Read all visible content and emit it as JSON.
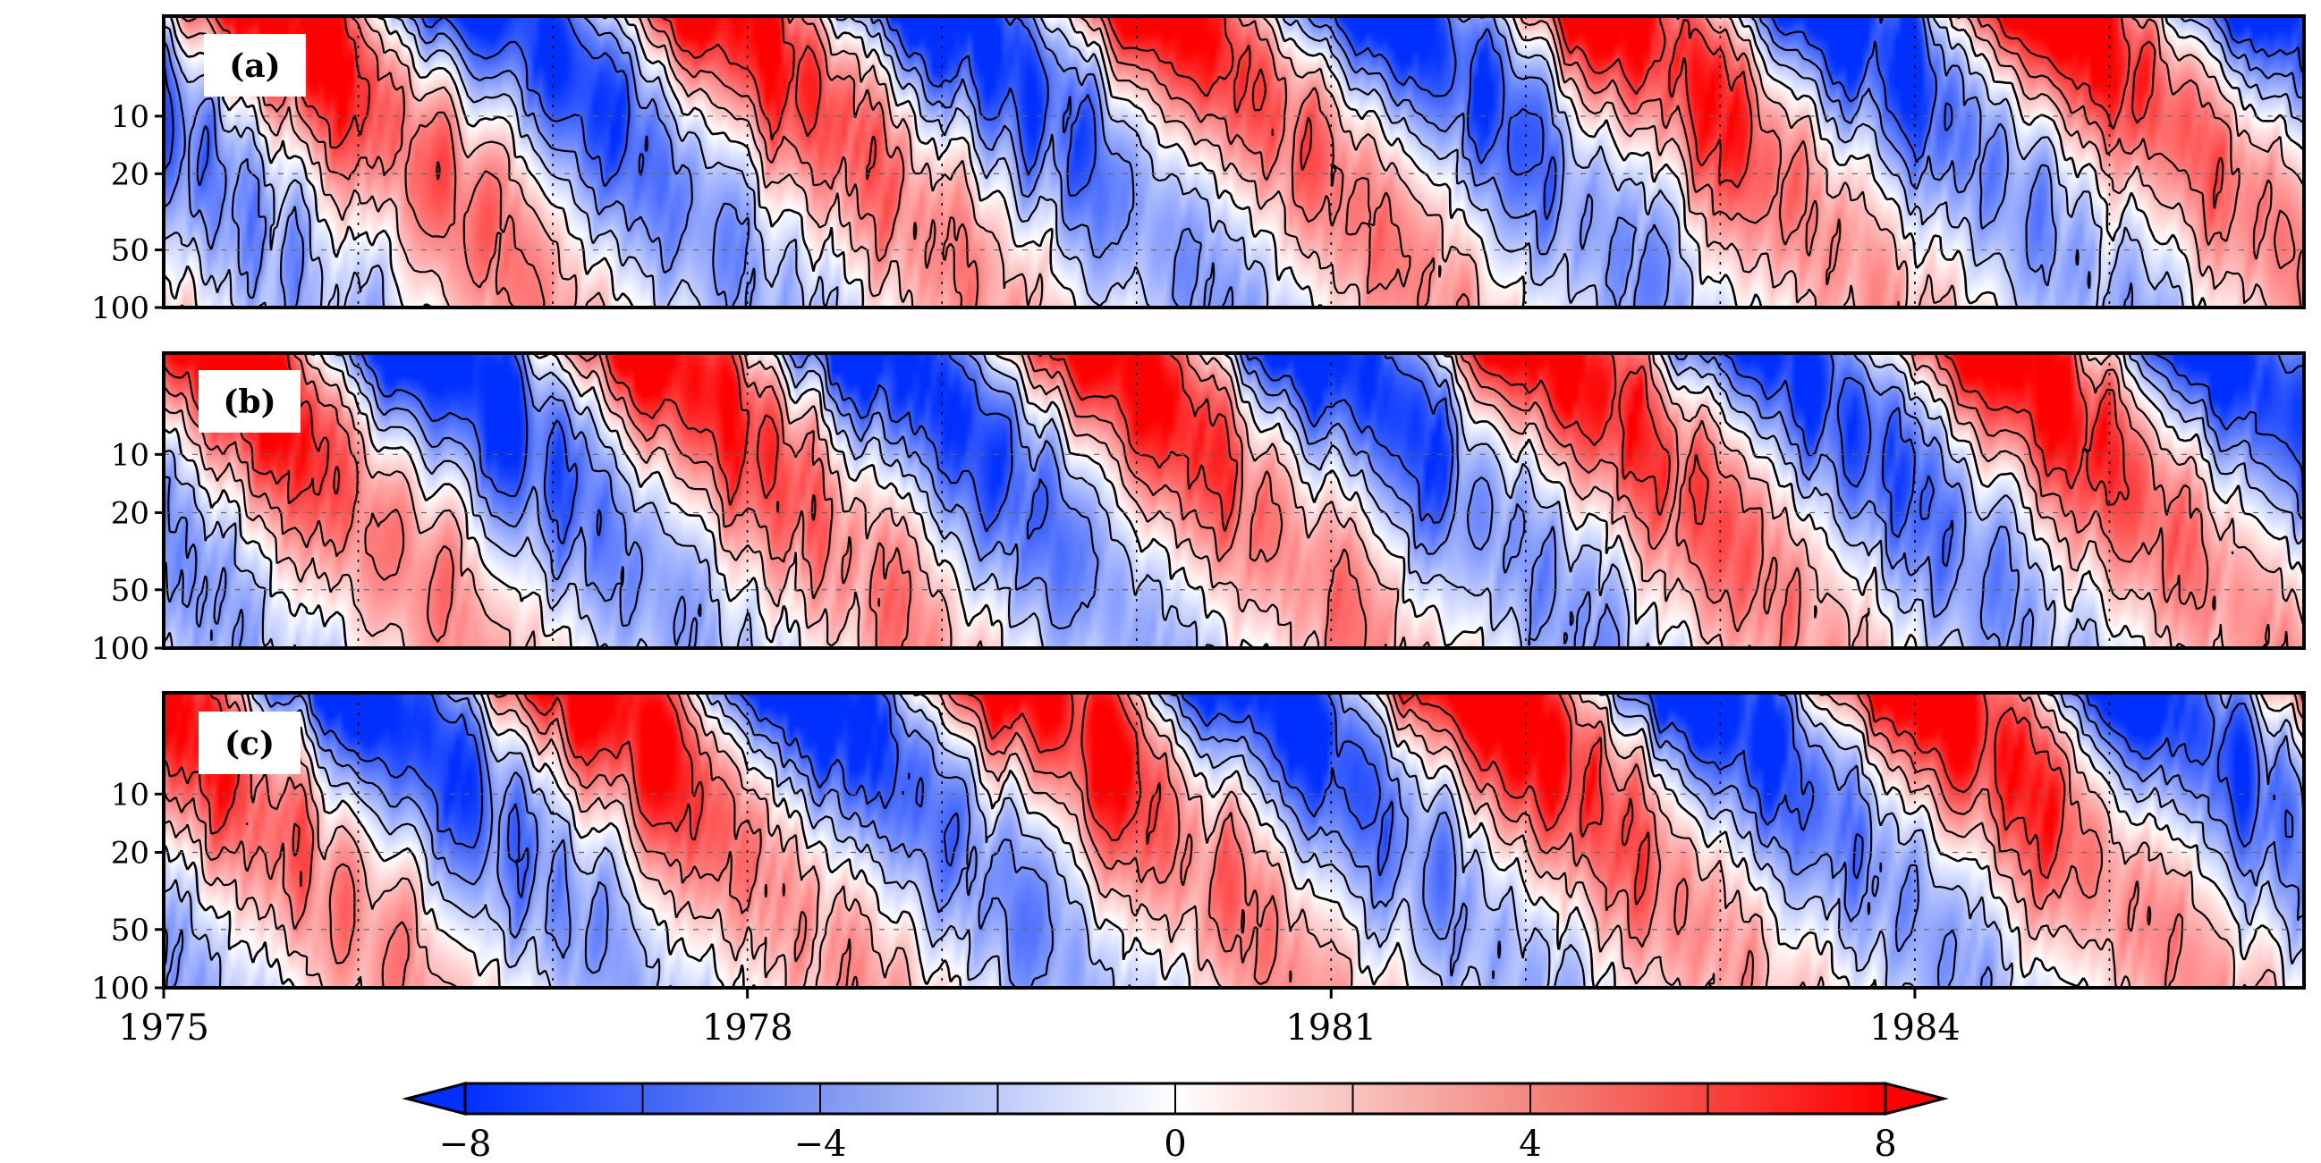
{
  "chart_data": {
    "type": "heatmap",
    "title": "",
    "xlabel": "",
    "ylabel": "",
    "x_range": [
      1975,
      1986
    ],
    "x_ticks": [
      1975,
      1978,
      1981,
      1984
    ],
    "x_tick_labels": [
      "1975",
      "1978",
      "1981",
      "1984"
    ],
    "y_axis_scale": "log",
    "y_reversed": true,
    "y_range": [
      3,
      100
    ],
    "y_ticks": [
      10,
      20,
      50,
      100
    ],
    "y_tick_labels": [
      "10",
      "20",
      "50",
      "100"
    ],
    "vertical_guides_years": [
      1976,
      1977,
      1978,
      1979,
      1980,
      1981,
      1982,
      1983,
      1984,
      1985
    ],
    "panels": [
      {
        "label": "(a)",
        "phase_offset_years": 0.0
      },
      {
        "label": "(b)",
        "phase_offset_years": 0.35
      },
      {
        "label": "(c)",
        "phase_offset_years": 0.7
      }
    ],
    "colorbar": {
      "min": -8,
      "max": 8,
      "ticks": [
        -8,
        -4,
        0,
        4,
        8
      ],
      "tick_labels": [
        "−8",
        "−4",
        "0",
        "4",
        "8"
      ],
      "extend": "both",
      "colormap": [
        "#0033ff",
        "#ffffff",
        "#ff0000"
      ]
    },
    "contour_levels": [
      -6,
      -4,
      -2,
      0,
      2,
      4,
      6
    ],
    "pattern": "downward-propagating oscillation of period about 2.3 years; amplitude ~8 near the top, weakening with depth",
    "period_years": 2.3,
    "descent_years": 1.3
  }
}
